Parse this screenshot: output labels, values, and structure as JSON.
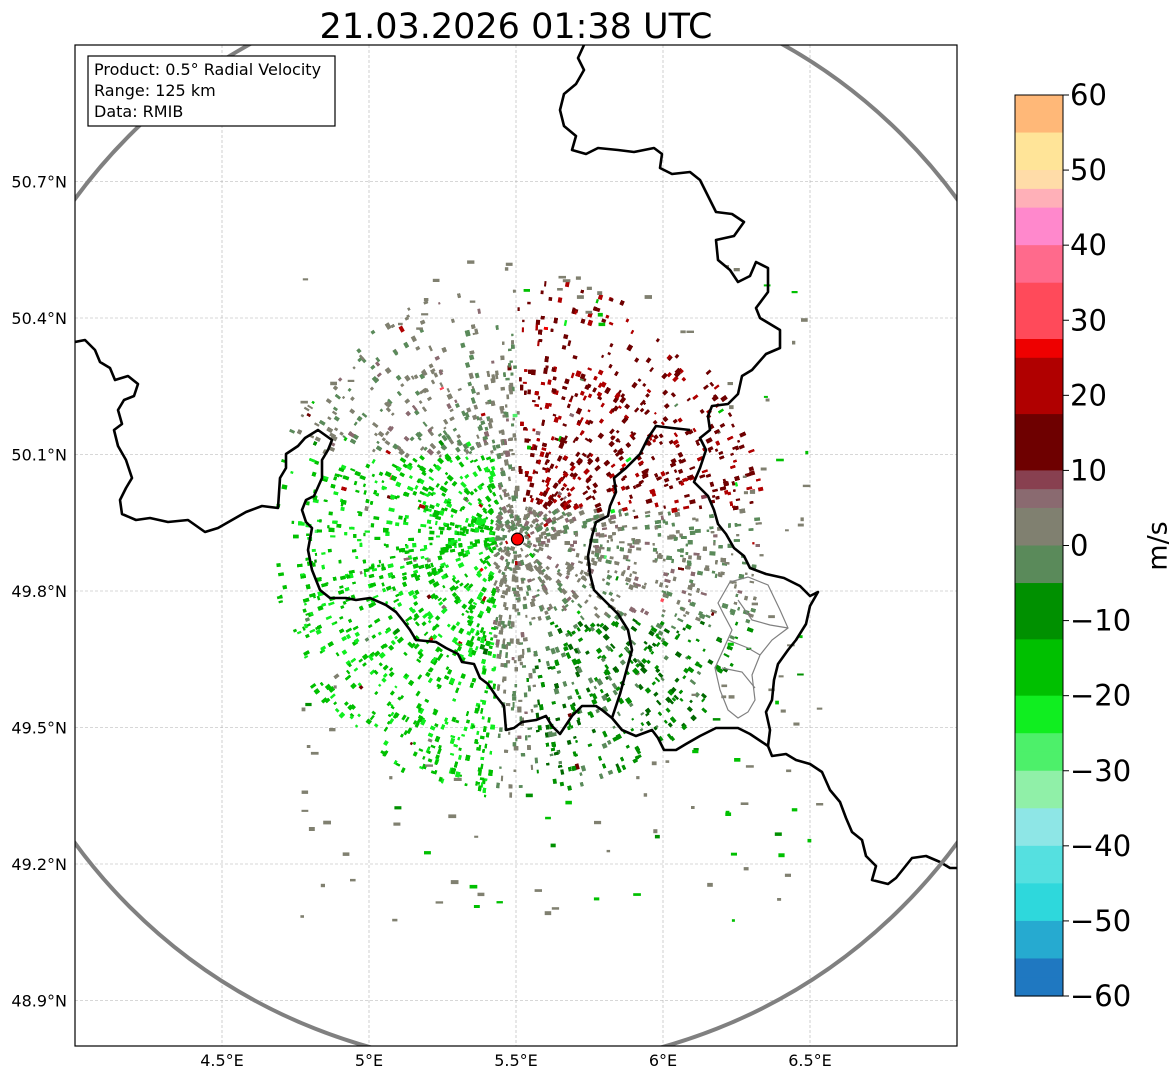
{
  "title": "21.03.2026 01:38 UTC",
  "info_box": {
    "product": "Product: 0.5° Radial Velocity",
    "range": "Range: 125 km",
    "data": "Data: RMIB"
  },
  "map": {
    "lon_labels": [
      "4.5°E",
      "5°E",
      "5.5°E",
      "6°E",
      "6.5°E"
    ],
    "lat_labels": [
      "50.7°N",
      "50.4°N",
      "50.1°N",
      "49.8°N",
      "49.5°N",
      "49.2°N",
      "48.9°N"
    ],
    "lon_values": [
      4.5,
      5.0,
      5.5,
      6.0,
      6.5
    ],
    "lat_values": [
      50.7,
      50.4,
      50.1,
      49.8,
      49.5,
      49.2,
      48.9
    ],
    "lon_range": [
      4.0,
      7.0
    ],
    "lat_range": [
      48.8,
      51.0
    ],
    "radar_site": {
      "lon": 5.505,
      "lat": 49.914
    },
    "radar_range_km": 125
  },
  "colorbar": {
    "label": "m/s",
    "ticks": [
      "60",
      "50",
      "40",
      "30",
      "20",
      "10",
      "0",
      "−10",
      "−20",
      "−30",
      "−40",
      "−50",
      "−60"
    ],
    "vmin": -60,
    "vmax": 60,
    "stops": [
      {
        "v": -60,
        "c": "#1f78c1"
      },
      {
        "v": -55,
        "c": "#26aad0"
      },
      {
        "v": -50,
        "c": "#2ed8dc"
      },
      {
        "v": -45,
        "c": "#55e0e0"
      },
      {
        "v": -40,
        "c": "#8ee6e6"
      },
      {
        "v": -36,
        "c": "#b8ecee"
      },
      {
        "v": -34,
        "c": "#90f0a8"
      },
      {
        "v": -30,
        "c": "#4df06a"
      },
      {
        "v": -26,
        "c": "#10ee20"
      },
      {
        "v": -20,
        "c": "#00c000"
      },
      {
        "v": -12,
        "c": "#009000"
      },
      {
        "v": -6,
        "c": "#006800"
      },
      {
        "v": -5,
        "c": "#5a8a5a"
      },
      {
        "v": 0,
        "c": "#808070"
      },
      {
        "v": 5,
        "c": "#8a6a70"
      },
      {
        "v": 8,
        "c": "#884050"
      },
      {
        "v": 9,
        "c": "#6e0000"
      },
      {
        "v": 18,
        "c": "#b00000"
      },
      {
        "v": 26,
        "c": "#ee0000"
      },
      {
        "v": 28,
        "c": "#ff4a5a"
      },
      {
        "v": 36,
        "c": "#ff6a8c"
      },
      {
        "v": 41,
        "c": "#ff88cc"
      },
      {
        "v": 44,
        "c": "#ffb0b8"
      },
      {
        "v": 47,
        "c": "#ffdca8"
      },
      {
        "v": 50,
        "c": "#ffe498"
      },
      {
        "v": 55,
        "c": "#ffb878"
      },
      {
        "v": 60,
        "c": "#ff9a58"
      }
    ]
  },
  "colors": {
    "range_ring": "#808080",
    "border": "#000000",
    "regional_border": "#808080",
    "grid": "#b0b0b0",
    "radar_marker": "#ff0000"
  }
}
